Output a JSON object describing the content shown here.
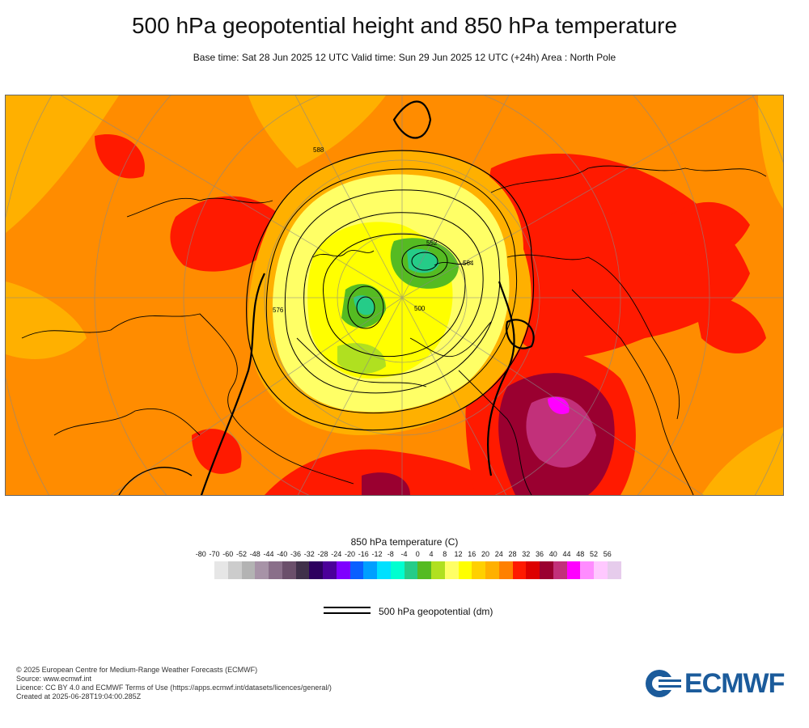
{
  "header": {
    "title": "500 hPa geopotential height and 850 hPa temperature",
    "subtitle": "Base time: Sat 28 Jun 2025 12 UTC Valid time: Sun 29 Jun 2025 12 UTC (+24h) Area : North Pole"
  },
  "map": {
    "projection": "polar stereographic",
    "area": "North Pole",
    "contour_labels": [
      "500",
      "552",
      "564",
      "576",
      "588"
    ]
  },
  "legend": {
    "temperature_title": "850 hPa temperature (C)",
    "ticks": [
      "-80",
      "-70",
      "-60",
      "-52",
      "-48",
      "-44",
      "-40",
      "-36",
      "-32",
      "-28",
      "-24",
      "-20",
      "-16",
      "-12",
      "-8",
      "-4",
      "0",
      "4",
      "8",
      "12",
      "16",
      "20",
      "24",
      "28",
      "32",
      "36",
      "40",
      "44",
      "48",
      "52",
      "56"
    ],
    "colors": [
      "#e6e6e6",
      "#cccccc",
      "#b3b3b3",
      "#a793a7",
      "#8a6f8a",
      "#6b4f6b",
      "#40304a",
      "#2d005f",
      "#4b0099",
      "#7f00ff",
      "#0a5fff",
      "#009fff",
      "#00e0ff",
      "#00ffd0",
      "#25cc88",
      "#55bb22",
      "#b0e020",
      "#ffff66",
      "#ffff00",
      "#ffd000",
      "#ffb000",
      "#ff8000",
      "#ff1a00",
      "#dd0000",
      "#9a0030",
      "#c2307a",
      "#ff00ff",
      "#ff8cff",
      "#ffc8ff",
      "#e6ccec"
    ],
    "contour_label": "500 hPa geopotential (dm)"
  },
  "footer": {
    "lines": [
      "© 2025 European Centre for Medium-Range Weather Forecasts (ECMWF)",
      "Source: www.ecmwf.int",
      "Licence: CC BY 4.0 and ECMWF Terms of Use (https://apps.ecmwf.int/datasets/licences/general/)",
      "Created at 2025-06-28T19:04:00.285Z"
    ],
    "logo_text": "ECMWF",
    "logo_color": "#1b5b9b"
  }
}
